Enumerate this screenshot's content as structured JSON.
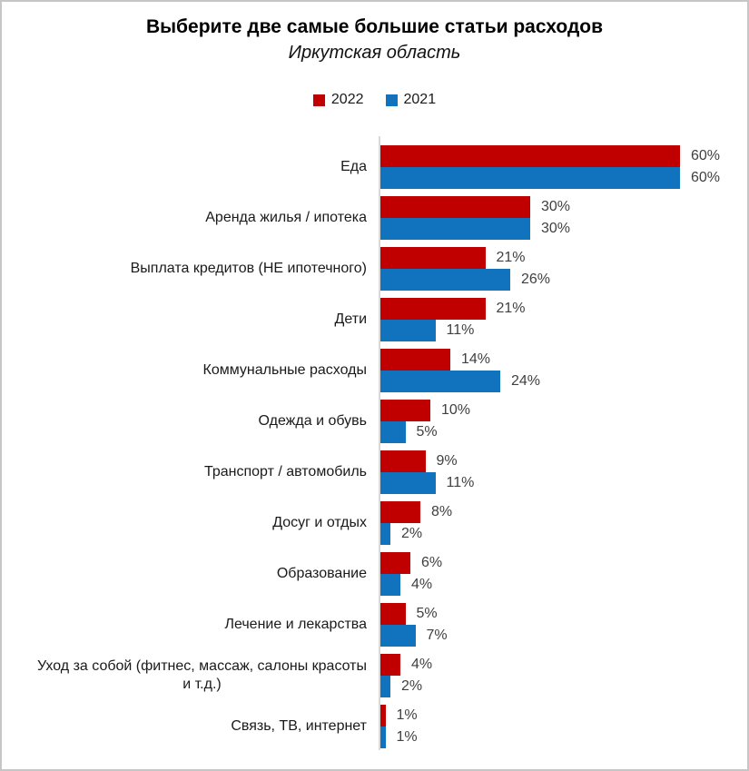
{
  "chart_data": {
    "type": "bar",
    "orientation": "horizontal",
    "title": "Выберите две самые большие статьи расходов",
    "subtitle": "Иркутская область",
    "categories": [
      "Еда",
      "Аренда жилья / ипотека",
      "Выплата кредитов (НЕ ипотечного)",
      "Дети",
      "Коммунальные расходы",
      "Одежда и обувь",
      "Транспорт / автомобиль",
      "Досуг и отдых",
      "Образование",
      "Лечение и лекарства",
      "Уход за собой (фитнес, массаж, салоны красоты\nи т.д.)",
      "Связь, ТВ, интернет"
    ],
    "series": [
      {
        "name": "2022",
        "color": "#C00000",
        "values": [
          60,
          30,
          21,
          21,
          14,
          10,
          9,
          8,
          6,
          5,
          4,
          1
        ]
      },
      {
        "name": "2021",
        "color": "#1172BD",
        "values": [
          60,
          30,
          26,
          11,
          24,
          5,
          11,
          2,
          4,
          7,
          2,
          1
        ]
      }
    ],
    "value_suffix": "%",
    "data_labels": true,
    "xlim": [
      0,
      65
    ],
    "grid": false,
    "legend_position": "top",
    "axis_line_color": "#D9D9D9",
    "value_label_color": "#404040",
    "category_label_color": "#1A1A1A"
  }
}
